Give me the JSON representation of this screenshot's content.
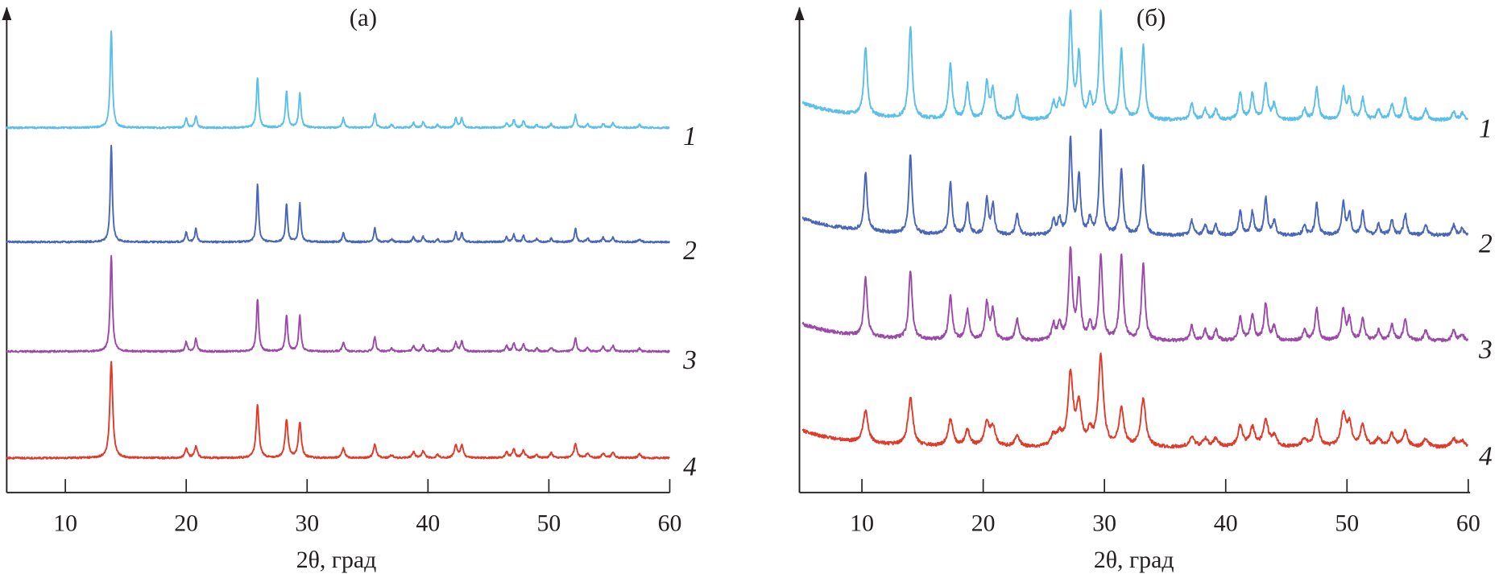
{
  "chart_data": [
    {
      "type": "line",
      "title": "(а)",
      "xlabel": "2θ, град",
      "ylabel": "",
      "xlim": [
        5,
        60
      ],
      "xticks": [
        "10",
        "20",
        "30",
        "40",
        "50",
        "60"
      ],
      "grid": false,
      "y_ticks_shown": false,
      "peak_positions_2theta": [
        13.8,
        20.0,
        20.8,
        25.9,
        28.3,
        29.4,
        33.0,
        35.6,
        37.0,
        38.8,
        39.6,
        40.8,
        42.3,
        42.8,
        46.5,
        47.1,
        47.9,
        49.0,
        50.2,
        52.2,
        53.2,
        54.5,
        55.3,
        57.5
      ],
      "series": [
        {
          "name": "1",
          "color": "#5bbfea",
          "relative_intensity": [
            1.0,
            0.1,
            0.12,
            0.52,
            0.38,
            0.36,
            0.1,
            0.14,
            0.03,
            0.05,
            0.06,
            0.03,
            0.1,
            0.1,
            0.05,
            0.08,
            0.07,
            0.03,
            0.04,
            0.13,
            0.04,
            0.04,
            0.05,
            0.03
          ]
        },
        {
          "name": "2",
          "color": "#4a66b8",
          "relative_intensity": [
            1.0,
            0.1,
            0.14,
            0.6,
            0.4,
            0.4,
            0.1,
            0.15,
            0.03,
            0.05,
            0.06,
            0.03,
            0.1,
            0.1,
            0.05,
            0.08,
            0.07,
            0.03,
            0.04,
            0.14,
            0.04,
            0.05,
            0.05,
            0.03
          ]
        },
        {
          "name": "3",
          "color": "#9b4aa8",
          "relative_intensity": [
            1.0,
            0.1,
            0.13,
            0.55,
            0.38,
            0.37,
            0.1,
            0.15,
            0.03,
            0.06,
            0.07,
            0.03,
            0.1,
            0.11,
            0.06,
            0.09,
            0.08,
            0.03,
            0.04,
            0.14,
            0.04,
            0.05,
            0.06,
            0.03
          ]
        },
        {
          "name": "4",
          "color": "#e03a2a",
          "relative_intensity": [
            1.0,
            0.1,
            0.12,
            0.55,
            0.4,
            0.37,
            0.1,
            0.14,
            0.03,
            0.06,
            0.07,
            0.03,
            0.13,
            0.13,
            0.06,
            0.09,
            0.08,
            0.03,
            0.05,
            0.15,
            0.05,
            0.05,
            0.06,
            0.04
          ]
        }
      ]
    },
    {
      "type": "line",
      "title": "(б)",
      "xlabel": "2θ, град",
      "ylabel": "",
      "xlim": [
        5,
        60
      ],
      "xticks": [
        "10",
        "20",
        "30",
        "40",
        "50",
        "60"
      ],
      "grid": false,
      "y_ticks_shown": false,
      "peak_positions_2theta": [
        10.3,
        14.0,
        17.3,
        18.7,
        20.3,
        20.8,
        22.8,
        25.8,
        26.3,
        27.2,
        27.9,
        28.8,
        29.7,
        31.4,
        33.2,
        37.2,
        38.3,
        39.2,
        41.2,
        42.2,
        43.3,
        44.0,
        46.5,
        47.5,
        49.7,
        50.2,
        51.3,
        52.6,
        53.7,
        54.8,
        56.5,
        58.8,
        59.5
      ],
      "series": [
        {
          "name": "1",
          "color": "#5bbfea",
          "relative_intensity": [
            0.65,
            0.86,
            0.52,
            0.33,
            0.35,
            0.28,
            0.22,
            0.15,
            0.15,
            1.0,
            0.6,
            0.2,
            1.0,
            0.65,
            0.7,
            0.15,
            0.1,
            0.1,
            0.25,
            0.25,
            0.35,
            0.15,
            0.1,
            0.3,
            0.3,
            0.2,
            0.2,
            0.1,
            0.15,
            0.2,
            0.1,
            0.08,
            0.06
          ]
        },
        {
          "name": "2",
          "color": "#4a66b8",
          "relative_intensity": [
            0.55,
            0.75,
            0.5,
            0.3,
            0.33,
            0.28,
            0.2,
            0.14,
            0.15,
            0.9,
            0.55,
            0.15,
            1.0,
            0.62,
            0.65,
            0.14,
            0.1,
            0.1,
            0.22,
            0.22,
            0.35,
            0.13,
            0.1,
            0.3,
            0.3,
            0.2,
            0.22,
            0.1,
            0.15,
            0.2,
            0.1,
            0.1,
            0.06
          ]
        },
        {
          "name": "3",
          "color": "#9b4aa8",
          "relative_intensity": [
            0.55,
            0.65,
            0.42,
            0.28,
            0.35,
            0.28,
            0.2,
            0.15,
            0.15,
            0.85,
            0.55,
            0.15,
            0.8,
            0.8,
            0.72,
            0.14,
            0.1,
            0.1,
            0.22,
            0.25,
            0.35,
            0.13,
            0.1,
            0.3,
            0.3,
            0.2,
            0.2,
            0.1,
            0.15,
            0.2,
            0.1,
            0.1,
            0.06
          ]
        },
        {
          "name": "4",
          "color": "#e03a2a",
          "relative_intensity": [
            0.3,
            0.45,
            0.25,
            0.15,
            0.22,
            0.18,
            0.1,
            0.1,
            0.1,
            0.68,
            0.38,
            0.12,
            0.85,
            0.35,
            0.45,
            0.1,
            0.08,
            0.08,
            0.2,
            0.18,
            0.25,
            0.1,
            0.08,
            0.25,
            0.3,
            0.2,
            0.2,
            0.08,
            0.12,
            0.15,
            0.08,
            0.08,
            0.06
          ]
        }
      ]
    }
  ]
}
